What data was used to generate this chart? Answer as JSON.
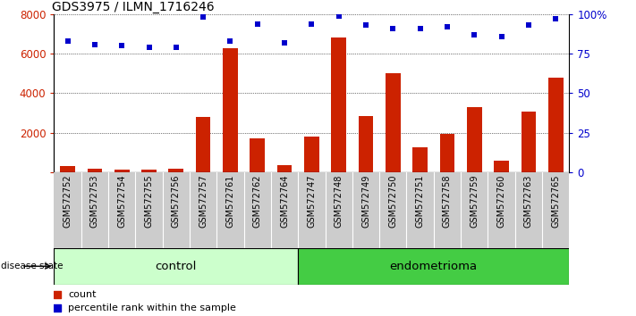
{
  "title": "GDS3975 / ILMN_1716246",
  "samples": [
    "GSM572752",
    "GSM572753",
    "GSM572754",
    "GSM572755",
    "GSM572756",
    "GSM572757",
    "GSM572761",
    "GSM572762",
    "GSM572764",
    "GSM572747",
    "GSM572748",
    "GSM572749",
    "GSM572750",
    "GSM572751",
    "GSM572758",
    "GSM572759",
    "GSM572760",
    "GSM572763",
    "GSM572765"
  ],
  "counts": [
    300,
    200,
    150,
    130,
    170,
    2800,
    6300,
    1700,
    350,
    1800,
    6800,
    2850,
    5000,
    1250,
    1950,
    3300,
    600,
    3050,
    4800
  ],
  "percentiles": [
    83,
    81,
    80,
    79,
    79,
    98,
    83,
    94,
    82,
    94,
    99,
    93,
    91,
    91,
    92,
    87,
    86,
    93,
    97
  ],
  "ylim_left": [
    0,
    8000
  ],
  "ylim_right": [
    0,
    100
  ],
  "yticks_left": [
    0,
    2000,
    4000,
    6000,
    8000
  ],
  "yticks_right": [
    0,
    25,
    50,
    75,
    100
  ],
  "ytick_labels_right": [
    "0",
    "25",
    "50",
    "75",
    "100%"
  ],
  "control_count": 9,
  "endometrioma_count": 10,
  "bar_color": "#cc2200",
  "dot_color": "#0000cc",
  "control_fill": "#ccffcc",
  "endometrioma_fill": "#44cc44",
  "sample_bg": "#cccccc",
  "xlabel_group1": "control",
  "xlabel_group2": "endometrioma",
  "disease_state_label": "disease state"
}
